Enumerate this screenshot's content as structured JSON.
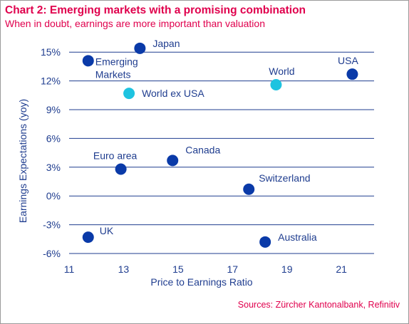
{
  "header": {
    "title": "Chart 2: Emerging markets with a promising combination",
    "subtitle": "When in doubt, earnings are more important than valuation"
  },
  "footer": {
    "source": "Sources: Zürcher Kantonalbank, Refinitiv"
  },
  "colors": {
    "accent": "#e0004d",
    "axis_text": "#1f3d8f",
    "point_dark": "#0a3aa8",
    "point_light": "#1ec3e0",
    "grid": "#1f3d8f"
  },
  "chart_data": {
    "type": "scatter",
    "xlabel": "Price to Earnings Ratio",
    "ylabel": "Earnings Expectations (yoy)",
    "xlim": [
      11,
      22.2
    ],
    "ylim": [
      -6,
      16.5
    ],
    "x_ticks": [
      11,
      13,
      15,
      17,
      19,
      21
    ],
    "x_tick_labels": [
      "11",
      "13",
      "15",
      "17",
      "19",
      "21"
    ],
    "y_ticks": [
      -6,
      -3,
      0,
      3,
      6,
      9,
      12,
      15
    ],
    "y_tick_labels": [
      "-6%",
      "-3%",
      "0%",
      "3%",
      "6%",
      "9%",
      "12%",
      "15%"
    ],
    "grid": "horizontal",
    "points": [
      {
        "label": "Japan",
        "x": 13.6,
        "y": 15.4,
        "color": "dark"
      },
      {
        "label": "Emerging\nMarkets",
        "x": 11.7,
        "y": 14.1,
        "color": "dark"
      },
      {
        "label": "World ex USA",
        "x": 13.2,
        "y": 10.7,
        "color": "light"
      },
      {
        "label": "World",
        "x": 18.6,
        "y": 11.6,
        "color": "light"
      },
      {
        "label": "USA",
        "x": 21.4,
        "y": 12.7,
        "color": "dark"
      },
      {
        "label": "Euro area",
        "x": 12.9,
        "y": 2.8,
        "color": "dark"
      },
      {
        "label": "Canada",
        "x": 14.8,
        "y": 3.7,
        "color": "dark"
      },
      {
        "label": "Switzerland",
        "x": 17.6,
        "y": 0.7,
        "color": "dark"
      },
      {
        "label": "UK",
        "x": 11.7,
        "y": -4.3,
        "color": "dark"
      },
      {
        "label": "Australia",
        "x": 18.2,
        "y": -4.8,
        "color": "dark"
      }
    ]
  }
}
